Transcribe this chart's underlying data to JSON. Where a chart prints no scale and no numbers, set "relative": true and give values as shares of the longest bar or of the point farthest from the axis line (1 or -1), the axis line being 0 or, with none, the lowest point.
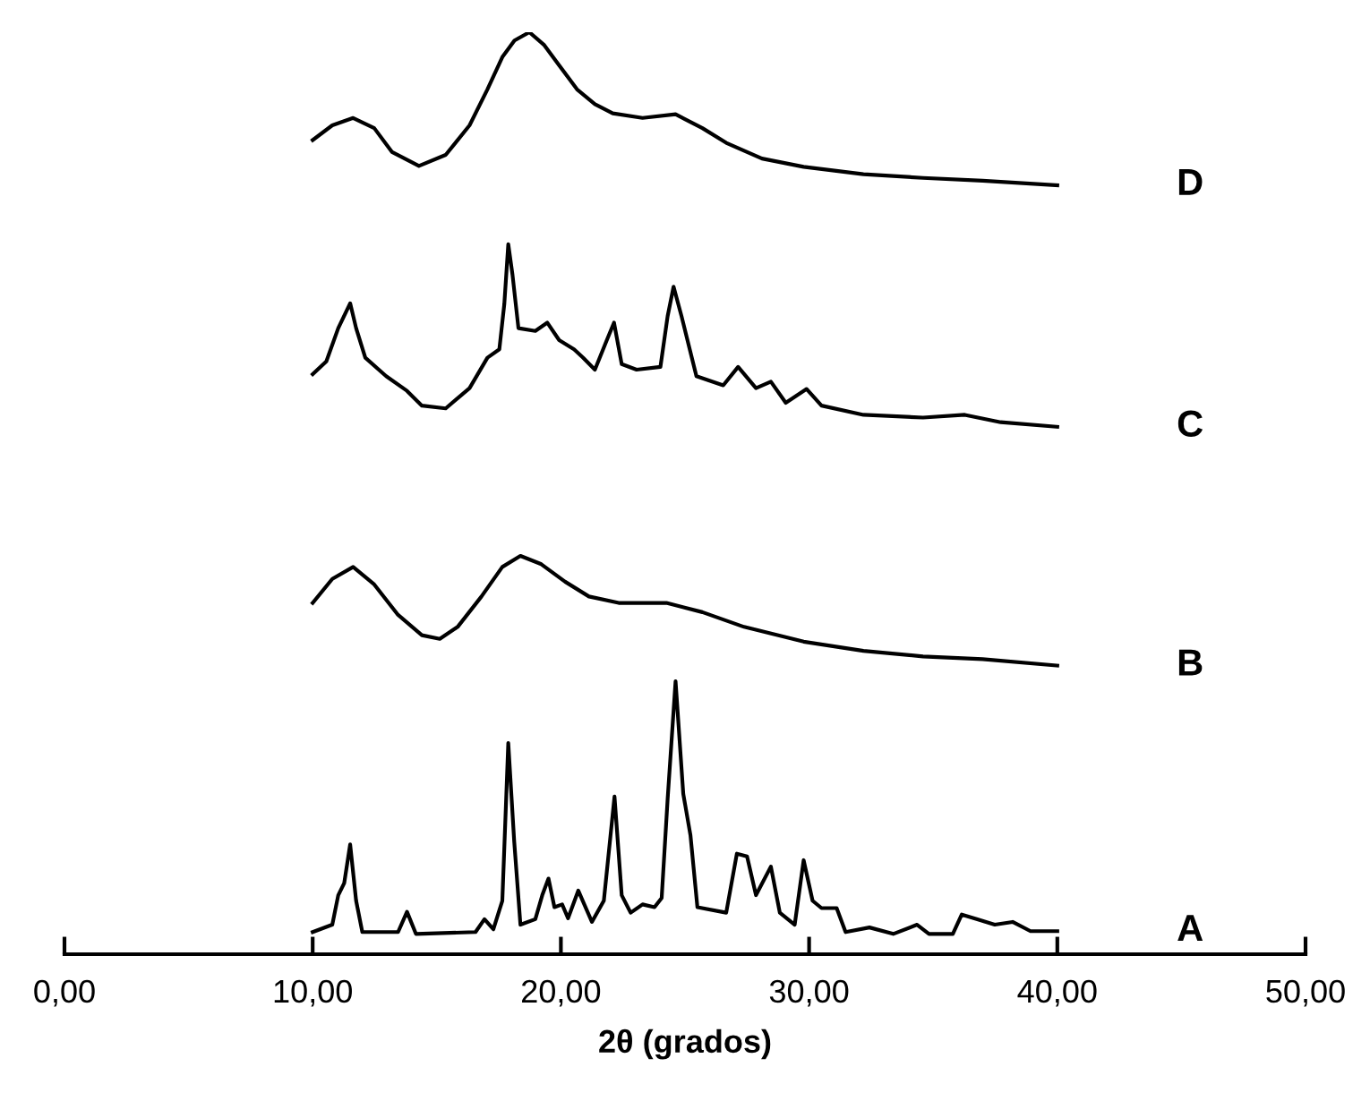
{
  "chart_data": {
    "type": "line",
    "relative": true,
    "xlabel": "2θ (grados)",
    "xlim": [
      0,
      50
    ],
    "xticks": [
      {
        "value": 0,
        "label": "0,00"
      },
      {
        "value": 10,
        "label": "10,00"
      },
      {
        "value": 20,
        "label": "20,00"
      },
      {
        "value": 30,
        "label": "30,00"
      },
      {
        "value": 40,
        "label": "40,00"
      },
      {
        "value": 50,
        "label": "50,00"
      }
    ],
    "grid": false,
    "legend": false,
    "marker": "none",
    "line_style": "solid",
    "tick_labels": "x",
    "series": [
      {
        "name": "D",
        "color": "#000000",
        "x": [
          10.0,
          10.79,
          11.63,
          12.48,
          13.2,
          14.28,
          15.36,
          16.32,
          17.04,
          17.64,
          18.13,
          18.73,
          19.33,
          19.93,
          20.65,
          21.37,
          22.09,
          23.29,
          24.62,
          25.7,
          26.66,
          28.1,
          29.78,
          32.19,
          34.59,
          36.99,
          40.0
        ],
        "values": [
          0.883,
          0.899,
          0.907,
          0.896,
          0.87,
          0.855,
          0.867,
          0.899,
          0.938,
          0.973,
          0.991,
          1.0,
          0.986,
          0.964,
          0.938,
          0.922,
          0.912,
          0.907,
          0.911,
          0.896,
          0.88,
          0.863,
          0.854,
          0.846,
          0.842,
          0.839,
          0.834
        ]
      },
      {
        "name": "C",
        "color": "#000000",
        "x": [
          10.0,
          10.55,
          11.03,
          11.51,
          11.75,
          12.12,
          12.96,
          13.8,
          14.4,
          15.36,
          16.32,
          17.04,
          17.52,
          17.72,
          17.88,
          18.05,
          18.29,
          18.97,
          19.45,
          19.93,
          20.53,
          20.89,
          21.37,
          21.85,
          22.14,
          22.45,
          23.05,
          24.01,
          24.3,
          24.54,
          24.86,
          25.46,
          26.54,
          27.14,
          27.86,
          28.46,
          29.06,
          29.9,
          30.5,
          32.19,
          34.59,
          36.27,
          37.72,
          40.0
        ],
        "values": [
          0.629,
          0.643,
          0.679,
          0.706,
          0.679,
          0.647,
          0.627,
          0.611,
          0.595,
          0.592,
          0.614,
          0.647,
          0.656,
          0.705,
          0.77,
          0.737,
          0.679,
          0.676,
          0.685,
          0.666,
          0.656,
          0.647,
          0.634,
          0.666,
          0.685,
          0.64,
          0.634,
          0.637,
          0.692,
          0.724,
          0.692,
          0.627,
          0.617,
          0.637,
          0.614,
          0.621,
          0.598,
          0.613,
          0.595,
          0.585,
          0.582,
          0.585,
          0.577,
          0.572
        ]
      },
      {
        "name": "B",
        "color": "#000000",
        "x": [
          10.0,
          10.79,
          11.63,
          12.48,
          13.44,
          14.4,
          15.12,
          15.84,
          16.8,
          17.64,
          18.37,
          19.21,
          20.17,
          21.13,
          22.33,
          24.25,
          25.7,
          27.38,
          29.78,
          32.19,
          34.59,
          36.99,
          40.0
        ],
        "values": [
          0.381,
          0.407,
          0.42,
          0.401,
          0.368,
          0.346,
          0.342,
          0.355,
          0.388,
          0.42,
          0.432,
          0.423,
          0.404,
          0.388,
          0.381,
          0.381,
          0.371,
          0.355,
          0.339,
          0.329,
          0.323,
          0.32,
          0.313
        ]
      },
      {
        "name": "A",
        "color": "#000000",
        "x": [
          10.0,
          10.79,
          11.03,
          11.27,
          11.51,
          11.75,
          12.0,
          13.44,
          13.8,
          14.16,
          16.56,
          16.92,
          17.28,
          17.64,
          17.88,
          18.12,
          18.37,
          18.97,
          19.25,
          19.5,
          19.74,
          20.05,
          20.29,
          20.7,
          21.25,
          21.73,
          22.16,
          22.45,
          22.81,
          23.29,
          23.77,
          24.06,
          24.3,
          24.62,
          24.93,
          25.22,
          25.5,
          26.66,
          27.09,
          27.5,
          27.86,
          28.46,
          28.82,
          29.42,
          29.78,
          30.14,
          30.5,
          31.11,
          31.47,
          32.43,
          33.39,
          34.35,
          34.83,
          35.79,
          36.15,
          36.75,
          37.48,
          38.2,
          38.92,
          40.0
        ],
        "values": [
          0.024,
          0.032,
          0.064,
          0.077,
          0.119,
          0.058,
          0.024,
          0.024,
          0.046,
          0.022,
          0.024,
          0.038,
          0.027,
          0.058,
          0.229,
          0.122,
          0.032,
          0.038,
          0.064,
          0.082,
          0.051,
          0.054,
          0.039,
          0.069,
          0.035,
          0.058,
          0.171,
          0.064,
          0.045,
          0.054,
          0.051,
          0.061,
          0.168,
          0.296,
          0.174,
          0.129,
          0.051,
          0.045,
          0.109,
          0.106,
          0.064,
          0.095,
          0.045,
          0.032,
          0.102,
          0.058,
          0.05,
          0.05,
          0.024,
          0.029,
          0.022,
          0.032,
          0.022,
          0.022,
          0.043,
          0.038,
          0.032,
          0.035,
          0.025,
          0.025
        ]
      }
    ]
  }
}
